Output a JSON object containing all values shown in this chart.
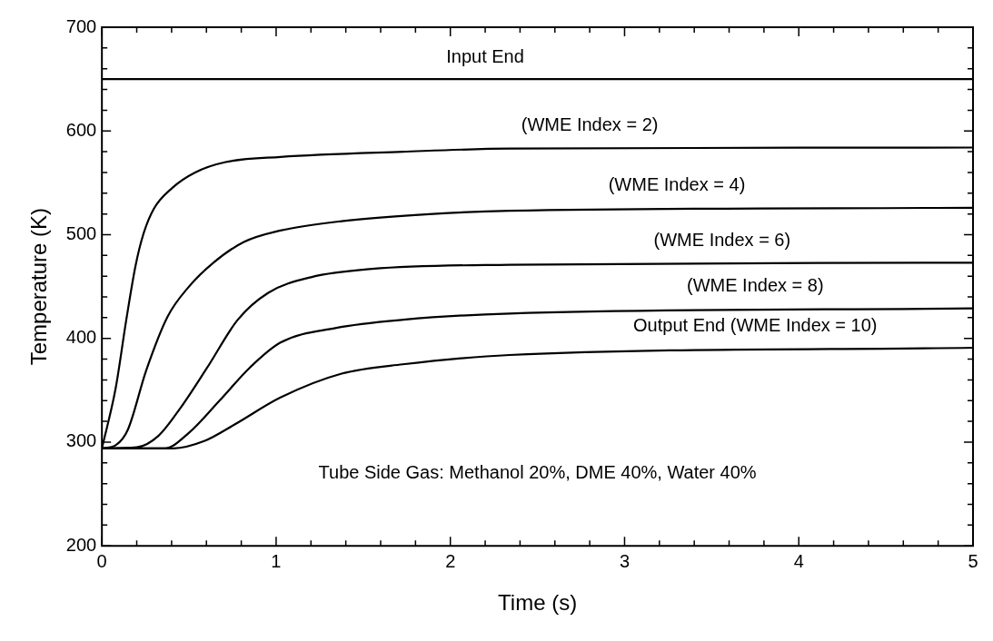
{
  "chart_data": {
    "type": "line",
    "xlabel": "Time (s)",
    "ylabel": "Temperature (K)",
    "xlim": [
      0,
      5
    ],
    "ylim": [
      200,
      700
    ],
    "xticks": [
      0,
      {
        "value": 0.2,
        "label": null
      },
      {
        "value": 0.4,
        "label": null
      },
      {
        "value": 0.6,
        "label": null
      },
      {
        "value": 0.8,
        "label": null
      },
      1,
      {
        "value": 1.2,
        "label": null
      },
      {
        "value": 1.4,
        "label": null
      },
      {
        "value": 1.6,
        "label": null
      },
      {
        "value": 1.8,
        "label": null
      },
      2,
      {
        "value": 2.2,
        "label": null
      },
      {
        "value": 2.4,
        "label": null
      },
      {
        "value": 2.6,
        "label": null
      },
      {
        "value": 2.8,
        "label": null
      },
      3,
      {
        "value": 3.2,
        "label": null
      },
      {
        "value": 3.4,
        "label": null
      },
      {
        "value": 3.6,
        "label": null
      },
      {
        "value": 3.8,
        "label": null
      },
      4,
      {
        "value": 4.2,
        "label": null
      },
      {
        "value": 4.4,
        "label": null
      },
      {
        "value": 4.6,
        "label": null
      },
      {
        "value": 4.8,
        "label": null
      },
      5
    ],
    "yticks": [
      200,
      {
        "value": 220,
        "label": null
      },
      {
        "value": 240,
        "label": null
      },
      {
        "value": 260,
        "label": null
      },
      {
        "value": 280,
        "label": null
      },
      300,
      {
        "value": 320,
        "label": null
      },
      {
        "value": 340,
        "label": null
      },
      {
        "value": 360,
        "label": null
      },
      {
        "value": 380,
        "label": null
      },
      400,
      {
        "value": 420,
        "label": null
      },
      {
        "value": 440,
        "label": null
      },
      {
        "value": 460,
        "label": null
      },
      {
        "value": 480,
        "label": null
      },
      500,
      {
        "value": 520,
        "label": null
      },
      {
        "value": 540,
        "label": null
      },
      {
        "value": 560,
        "label": null
      },
      {
        "value": 580,
        "label": null
      },
      600,
      {
        "value": 620,
        "label": null
      },
      {
        "value": 640,
        "label": null
      },
      {
        "value": 660,
        "label": null
      },
      {
        "value": 680,
        "label": null
      },
      700
    ],
    "grid": false,
    "legend": false,
    "marker": "none",
    "line_style": "solid",
    "series": [
      {
        "color": "#000000",
        "x": [
          0,
          5
        ],
        "values": [
          650,
          650
        ]
      },
      {
        "color": "#000000",
        "x": [
          0,
          0.079,
          0.14,
          0.193,
          0.237,
          0.298,
          0.403,
          0.535,
          0.71,
          1.025,
          1.726,
          2.34,
          5
        ],
        "values": [
          294,
          352,
          418,
          470,
          500,
          525,
          545,
          560,
          570,
          575,
          580,
          583,
          584
        ]
      },
      {
        "color": "#000000",
        "x": [
          0,
          0.079,
          0.149,
          0.254,
          0.377,
          0.5,
          0.64,
          0.815,
          1.025,
          1.376,
          1.9,
          2.34,
          5
        ],
        "values": [
          294,
          297,
          312,
          369,
          421,
          450,
          473,
          493,
          504,
          513,
          520,
          523,
          526
        ]
      },
      {
        "color": "#000000",
        "x": [
          0,
          0.2,
          0.324,
          0.447,
          0.605,
          0.78,
          0.955,
          1.2,
          1.55,
          2.34,
          5
        ],
        "values": [
          294,
          295,
          306,
          332,
          372,
          418,
          444,
          459,
          467,
          471,
          473
        ]
      },
      {
        "color": "#000000",
        "x": [
          0,
          0.36,
          0.5,
          0.675,
          0.85,
          1.025,
          1.34,
          1.73,
          2.34,
          5
        ],
        "values": [
          294,
          294,
          309,
          340,
          372,
          396,
          410,
          418,
          424,
          429
        ]
      },
      {
        "color": "#000000",
        "x": [
          0,
          0.41,
          0.587,
          0.762,
          1.025,
          1.376,
          1.726,
          2.34,
          5
        ],
        "values": [
          294,
          294,
          301,
          317,
          343,
          366,
          375,
          384,
          391
        ]
      }
    ],
    "annotations": [
      "Input End",
      "(WME Index = 2)",
      "(WME Index = 4)",
      "(WME Index = 6)",
      "(WME Index = 8)",
      "Output End (WME Index = 10)",
      "Tube Side Gas: Methanol 20%, DME 40%, Water 40%"
    ]
  }
}
